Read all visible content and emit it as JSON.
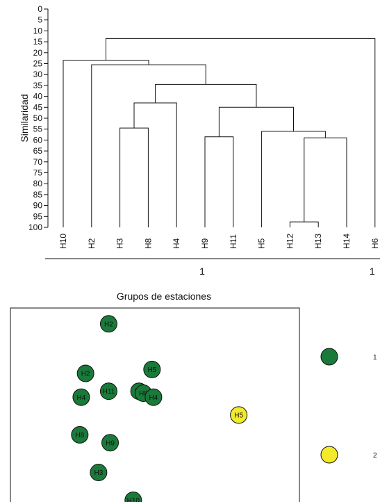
{
  "chart_data": [
    {
      "type": "dendrogram",
      "ylabel": "Similaridad",
      "ylim": [
        0,
        100
      ],
      "yticks": [
        "0",
        "5",
        "10",
        "15",
        "20",
        "25",
        "30",
        "35",
        "40",
        "45",
        "50",
        "55",
        "60",
        "65",
        "70",
        "75",
        "80",
        "85",
        "90",
        "95",
        "100"
      ],
      "leaves": [
        "H10",
        "H2",
        "H3",
        "H8",
        "H4",
        "H9",
        "H11",
        "H5",
        "H12",
        "H13",
        "H14",
        "H6"
      ],
      "merges": [
        {
          "left": "H12",
          "right": "H13",
          "height": 97.5
        },
        {
          "left": "H12+H13",
          "right": "H14",
          "height": 59
        },
        {
          "left": "H5",
          "right": "H12+H13+H14",
          "height": 56
        },
        {
          "left": "H9",
          "right": "H11",
          "height": 58.5
        },
        {
          "left": "H9+H11",
          "right": "H5+H12+H13+H14",
          "height": 45
        },
        {
          "left": "H3",
          "right": "H8",
          "height": 54.5
        },
        {
          "left": "H3+H8",
          "right": "H4",
          "height": 43
        },
        {
          "left": "H3+H8+H4",
          "right": "H9+H11+H5+H12+H13+H14",
          "height": 34.5
        },
        {
          "left": "H2",
          "right": "H3..H14",
          "height": 25.5
        },
        {
          "left": "H10",
          "right": "H2..H14",
          "height": 23.5
        },
        {
          "left": "H10..H14",
          "right": "H6",
          "height": 13.5
        }
      ],
      "groups": [
        {
          "label": "1",
          "members": [
            "H10",
            "H2",
            "H3",
            "H8",
            "H4",
            "H9",
            "H11",
            "H5",
            "H12",
            "H13",
            "H14"
          ]
        },
        {
          "label": "1",
          "members": [
            "H6"
          ]
        }
      ]
    },
    {
      "type": "scatter",
      "title": "Grupos de estaciones",
      "xlim": [
        0,
        100
      ],
      "ylim": [
        0,
        100
      ],
      "points": [
        {
          "label": "H2",
          "x": 34,
          "y": 92,
          "group": 1
        },
        {
          "label": "H5",
          "x": 49,
          "y": 69,
          "group": 1
        },
        {
          "label": "H2",
          "x": 26,
          "y": 67,
          "group": 1
        },
        {
          "label": "H11",
          "x": 34,
          "y": 58,
          "group": 1
        },
        {
          "label": "H8",
          "x": 44.5,
          "y": 58,
          "group": 1
        },
        {
          "label": "H8",
          "x": 46,
          "y": 57,
          "group": 1
        },
        {
          "label": "H4",
          "x": 49.5,
          "y": 55,
          "group": 1
        },
        {
          "label": "H4",
          "x": 24.5,
          "y": 55,
          "group": 1
        },
        {
          "label": "H5",
          "x": 79,
          "y": 46,
          "group": 2
        },
        {
          "label": "H8",
          "x": 24,
          "y": 36,
          "group": 1
        },
        {
          "label": "H9",
          "x": 34.5,
          "y": 32,
          "group": 1
        },
        {
          "label": "H3",
          "x": 30.5,
          "y": 17,
          "group": 1
        },
        {
          "label": "H10",
          "x": 42.5,
          "y": 3,
          "group": 1
        }
      ],
      "legend": [
        {
          "label": "1",
          "color": "#1a7a3a"
        },
        {
          "label": "2",
          "color": "#f2ea2a"
        }
      ],
      "colors": {
        "group1": "#1a7a3a",
        "group2": "#f2ea2a"
      }
    }
  ]
}
